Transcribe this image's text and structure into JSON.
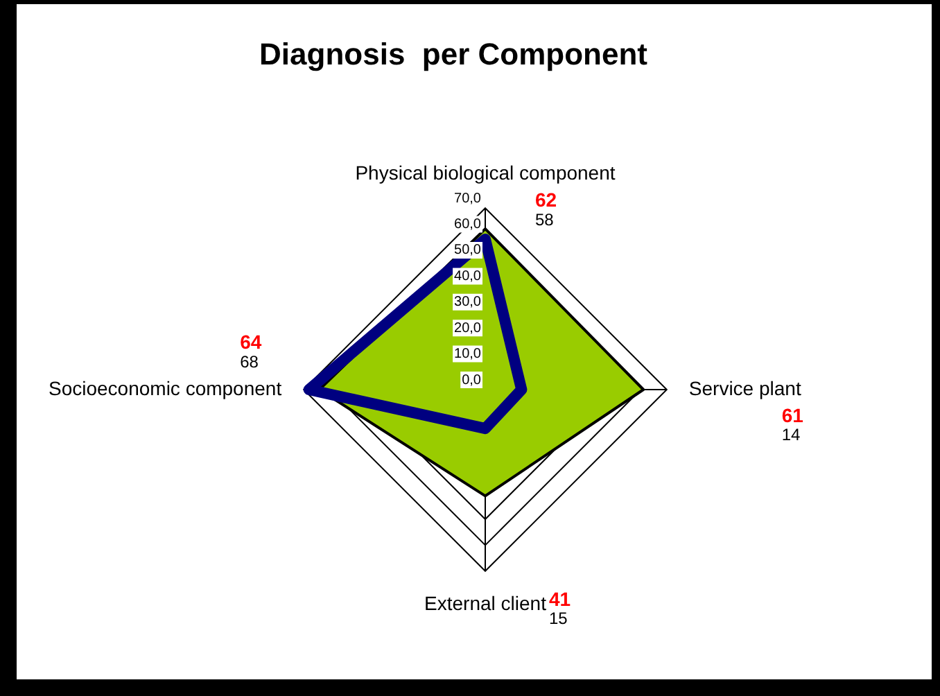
{
  "chart_data": {
    "type": "radar",
    "title": "Diagnosis  per Component",
    "categories": [
      "Physical biological component",
      "Service plant",
      "External client",
      "Socioeconomic component"
    ],
    "series": [
      {
        "color": "#99cc00",
        "values": [
          62,
          61,
          41,
          64
        ]
      },
      {
        "color": "#000080",
        "values": [
          58,
          14,
          15,
          68
        ]
      }
    ],
    "ylim": [
      0,
      70
    ],
    "yticks": [
      {
        "value": 0,
        "label": "0,0"
      },
      {
        "value": 10,
        "label": "10,0"
      },
      {
        "value": 20,
        "label": "20,0"
      },
      {
        "value": 30,
        "label": "30,0"
      },
      {
        "value": 40,
        "label": "40,0"
      },
      {
        "value": 50,
        "label": "50,0"
      },
      {
        "value": 60,
        "label": "60,0"
      },
      {
        "value": 70,
        "label": "70,0"
      }
    ],
    "annotations": [
      "62",
      "58",
      "61",
      "14",
      "41",
      "15",
      "64",
      "68"
    ],
    "grid": true,
    "legend": false,
    "marker": "none"
  }
}
